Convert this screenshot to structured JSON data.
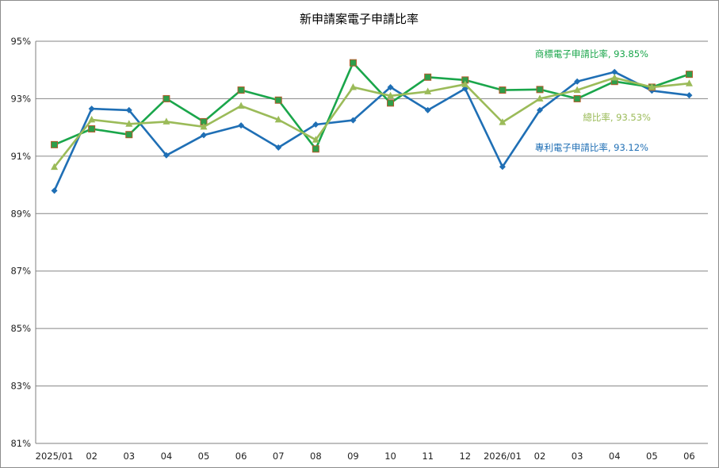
{
  "chart_data": {
    "type": "line",
    "title": "新申請案電子申請比率",
    "xlabel": "",
    "ylabel": "",
    "categories": [
      "2025/01",
      "02",
      "03",
      "04",
      "05",
      "06",
      "07",
      "08",
      "09",
      "10",
      "11",
      "12",
      "2026/01",
      "02",
      "03",
      "04",
      "05",
      "06"
    ],
    "ylim": [
      81,
      95
    ],
    "yticks": [
      81,
      83,
      85,
      87,
      89,
      91,
      93,
      95
    ],
    "ytick_labels": [
      "81%",
      "83%",
      "85%",
      "87%",
      "89%",
      "91%",
      "93%",
      "95%"
    ],
    "grid": true,
    "legend": "none",
    "series": [
      {
        "name": "專利電子申請比率",
        "color": "#1f6fb5",
        "marker": "diamond",
        "values": [
          89.8,
          92.65,
          92.6,
          91.03,
          91.73,
          92.07,
          91.3,
          92.1,
          92.25,
          93.4,
          92.6,
          93.35,
          90.63,
          92.6,
          93.6,
          93.93,
          93.28,
          93.12
        ],
        "annotation": "專利電子申請比率, 93.12%"
      },
      {
        "name": "商標電子申請比率",
        "color": "#1aa64b",
        "marker": "square",
        "values": [
          91.4,
          91.95,
          91.75,
          93.0,
          92.2,
          93.3,
          92.95,
          91.25,
          94.25,
          92.85,
          93.75,
          93.65,
          93.3,
          93.32,
          93.0,
          93.6,
          93.4,
          93.85
        ],
        "annotation": "商標電子申請比率, 93.85%"
      },
      {
        "name": "總比率",
        "color": "#9bbb59",
        "marker": "triangle",
        "values": [
          90.62,
          92.27,
          92.12,
          92.2,
          92.02,
          92.75,
          92.27,
          91.57,
          93.4,
          93.1,
          93.25,
          93.5,
          92.18,
          93.0,
          93.3,
          93.73,
          93.4,
          93.53
        ],
        "annotation": "總比率, 93.53%"
      }
    ]
  }
}
